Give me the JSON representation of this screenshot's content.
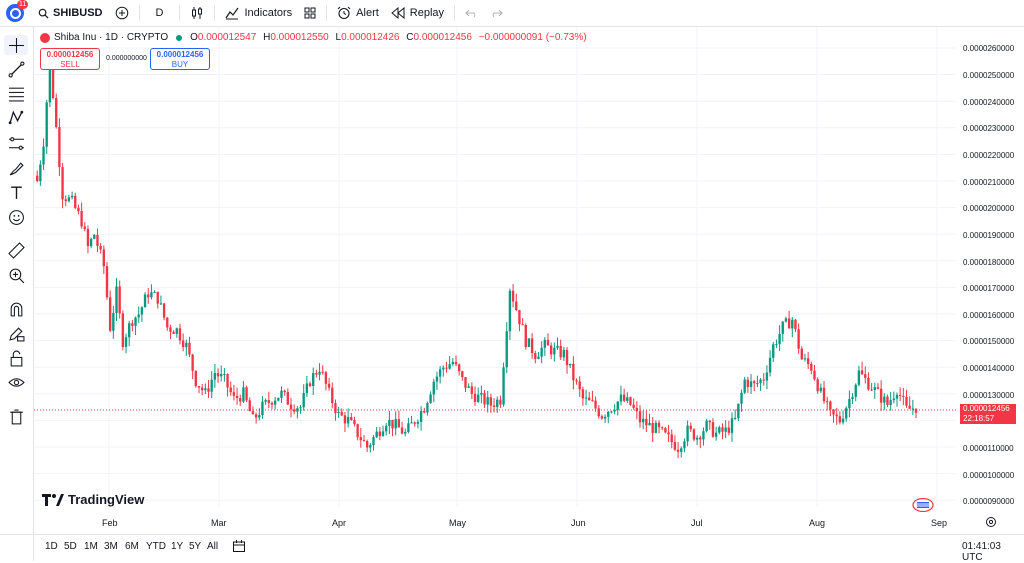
{
  "toolbar": {
    "notification_count": "11",
    "symbol": "SHIBUSD",
    "interval": "D",
    "indicators_label": "Indicators",
    "alert_label": "Alert",
    "replay_label": "Replay"
  },
  "legend": {
    "title": "Shiba Inu · 1D · CRYPTO",
    "o_key": "O",
    "o_val": "0.000012547",
    "h_key": "H",
    "h_val": "0.000012550",
    "l_key": "L",
    "l_val": "0.000012426",
    "c_key": "C",
    "c_val": "0.000012456",
    "change": "−0.000000091 (−0.73%)"
  },
  "trade": {
    "sell_price": "0.000012456",
    "sell_label": "SELL",
    "buy_price": "0.000012456",
    "buy_label": "BUY",
    "spread": "0.000000000"
  },
  "price_axis": [
    "0.0000260000",
    "0.0000250000",
    "0.0000240000",
    "0.0000230000",
    "0.0000220000",
    "0.0000210000",
    "0.0000200000",
    "0.0000190000",
    "0.0000180000",
    "0.0000170000",
    "0.0000160000",
    "0.0000150000",
    "0.0000140000",
    "0.0000130000",
    "0.0000110000",
    "0.0000100000",
    "0.0000090000"
  ],
  "time_axis": [
    "Feb",
    "Mar",
    "Apr",
    "May",
    "Jun",
    "Jul",
    "Aug",
    "Sep"
  ],
  "last_price": {
    "price": "0.000012456",
    "countdown": "22:18:57"
  },
  "brand": "TradingView",
  "ranges": [
    "1D",
    "5D",
    "1M",
    "3M",
    "6M",
    "YTD",
    "1Y",
    "5Y",
    "All"
  ],
  "clock": "01:41:03 UTC",
  "colors": {
    "up": "#089981",
    "down": "#f23645",
    "accent": "#2962ff"
  },
  "chart_data": {
    "type": "candlestick",
    "title": "Shiba Inu · 1D · CRYPTO",
    "ylim": [
      8.5e-06,
      2.65e-05
    ],
    "x_ticks": [
      "Feb",
      "Mar",
      "Apr",
      "May",
      "Jun",
      "Jul",
      "Aug",
      "Sep"
    ],
    "grid": true,
    "close_path": [
      [
        1,
        21.0
      ],
      [
        3,
        22.5
      ],
      [
        5,
        25.5
      ],
      [
        7,
        23.0
      ],
      [
        9,
        20.5
      ],
      [
        12,
        20.2
      ],
      [
        15,
        19.5
      ],
      [
        17,
        18.5
      ],
      [
        19,
        19.0
      ],
      [
        22,
        17.8
      ],
      [
        24,
        15.5
      ],
      [
        26,
        16.8
      ],
      [
        28,
        15.0
      ],
      [
        31,
        15.8
      ],
      [
        33,
        16.0
      ],
      [
        36,
        16.8
      ],
      [
        39,
        16.6
      ],
      [
        42,
        15.5
      ],
      [
        45,
        15.4
      ],
      [
        48,
        14.8
      ],
      [
        51,
        13.5
      ],
      [
        54,
        13.0
      ],
      [
        57,
        13.8
      ],
      [
        60,
        13.5
      ],
      [
        63,
        12.8
      ],
      [
        66,
        13.0
      ],
      [
        69,
        12.0
      ],
      [
        72,
        12.5
      ],
      [
        75,
        12.8
      ],
      [
        78,
        13.0
      ],
      [
        81,
        12.6
      ],
      [
        84,
        12.5
      ],
      [
        87,
        13.5
      ],
      [
        90,
        14.0
      ],
      [
        93,
        13.0
      ],
      [
        96,
        12.2
      ],
      [
        99,
        12.0
      ],
      [
        102,
        11.5
      ],
      [
        105,
        11.0
      ],
      [
        108,
        11.5
      ],
      [
        111,
        12.0
      ],
      [
        114,
        11.8
      ],
      [
        117,
        11.5
      ],
      [
        120,
        12.0
      ],
      [
        123,
        12.5
      ],
      [
        126,
        13.5
      ],
      [
        129,
        14.0
      ],
      [
        132,
        14.2
      ],
      [
        135,
        13.5
      ],
      [
        138,
        13.0
      ],
      [
        141,
        12.8
      ],
      [
        144,
        12.6
      ],
      [
        147,
        12.8
      ],
      [
        150,
        17.0
      ],
      [
        152,
        16.2
      ],
      [
        155,
        15.0
      ],
      [
        158,
        14.5
      ],
      [
        161,
        14.8
      ],
      [
        164,
        14.6
      ],
      [
        167,
        14.5
      ],
      [
        170,
        13.6
      ],
      [
        173,
        12.8
      ],
      [
        176,
        12.6
      ],
      [
        179,
        12.2
      ],
      [
        182,
        12.5
      ],
      [
        185,
        12.8
      ],
      [
        188,
        12.6
      ],
      [
        191,
        12.0
      ],
      [
        194,
        11.8
      ],
      [
        197,
        11.6
      ],
      [
        200,
        11.3
      ],
      [
        203,
        11.0
      ],
      [
        206,
        11.6
      ],
      [
        209,
        11.4
      ],
      [
        212,
        11.8
      ],
      [
        215,
        11.5
      ],
      [
        218,
        11.6
      ],
      [
        221,
        12.0
      ],
      [
        224,
        13.5
      ],
      [
        227,
        13.3
      ],
      [
        230,
        13.6
      ],
      [
        233,
        14.8
      ],
      [
        236,
        15.5
      ],
      [
        239,
        15.8
      ],
      [
        242,
        14.3
      ],
      [
        245,
        14.0
      ],
      [
        248,
        13.0
      ],
      [
        251,
        12.2
      ],
      [
        254,
        12.0
      ],
      [
        257,
        12.8
      ],
      [
        260,
        13.8
      ],
      [
        263,
        13.4
      ],
      [
        266,
        13.0
      ],
      [
        269,
        12.6
      ],
      [
        272,
        13.2
      ],
      [
        275,
        12.4
      ],
      [
        278,
        12.5
      ]
    ]
  }
}
